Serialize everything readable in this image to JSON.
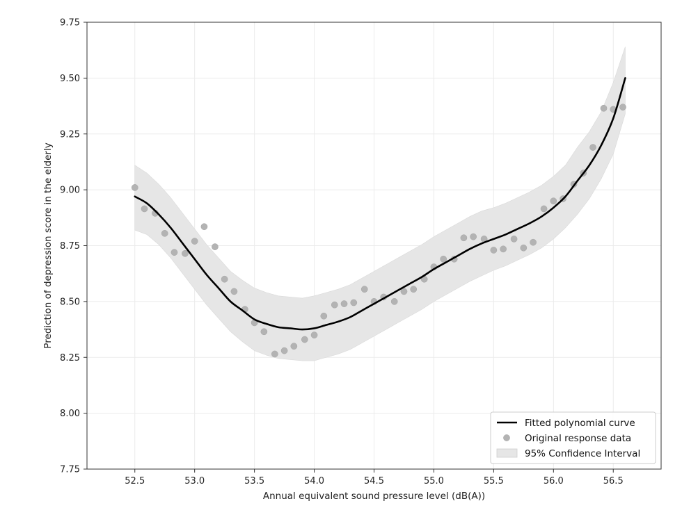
{
  "chart_data": {
    "type": "line",
    "title": "",
    "xlabel": "Annual equivalent sound pressure level (dB(A))",
    "ylabel": "Prediction of depression score in the elderly",
    "xlim": [
      52.1,
      56.9
    ],
    "ylim": [
      7.75,
      9.75
    ],
    "x_ticks": [
      52.5,
      53.0,
      53.5,
      54.0,
      54.5,
      55.0,
      55.5,
      56.0,
      56.5
    ],
    "x_tick_labels": [
      "52.5",
      "53.0",
      "53.5",
      "54.0",
      "54.5",
      "55.0",
      "55.5",
      "56.0",
      "56.5"
    ],
    "y_ticks": [
      7.75,
      8.0,
      8.25,
      8.5,
      8.75,
      9.0,
      9.25,
      9.5,
      9.75
    ],
    "y_tick_labels": [
      "7.75",
      "8.00",
      "8.25",
      "8.50",
      "8.75",
      "9.00",
      "9.25",
      "9.50",
      "9.75"
    ],
    "grid": true,
    "legend_position": "lower-right",
    "legend": [
      {
        "label": "Fitted polynomial curve",
        "kind": "line",
        "color": "#000000"
      },
      {
        "label": "Original response data",
        "kind": "marker",
        "color": "#b3b3b3"
      },
      {
        "label": "95% Confidence Interval",
        "kind": "patch",
        "color": "#e6e6e6"
      }
    ],
    "fitted_curve": {
      "name": "Fitted polynomial curve",
      "color": "#000000",
      "x": [
        52.5,
        52.6,
        52.7,
        52.8,
        52.9,
        53.0,
        53.1,
        53.2,
        53.3,
        53.4,
        53.5,
        53.6,
        53.7,
        53.8,
        53.9,
        54.0,
        54.1,
        54.2,
        54.3,
        54.4,
        54.5,
        54.6,
        54.7,
        54.8,
        54.9,
        55.0,
        55.1,
        55.2,
        55.3,
        55.4,
        55.5,
        55.6,
        55.7,
        55.8,
        55.9,
        56.0,
        56.1,
        56.2,
        56.3,
        56.4,
        56.5,
        56.6
      ],
      "y": [
        8.97,
        8.94,
        8.89,
        8.83,
        8.76,
        8.69,
        8.62,
        8.56,
        8.5,
        8.46,
        8.42,
        8.4,
        8.385,
        8.38,
        8.375,
        8.38,
        8.395,
        8.41,
        8.43,
        8.46,
        8.49,
        8.52,
        8.55,
        8.58,
        8.61,
        8.645,
        8.675,
        8.705,
        8.735,
        8.76,
        8.78,
        8.8,
        8.825,
        8.85,
        8.88,
        8.92,
        8.97,
        9.04,
        9.11,
        9.2,
        9.32,
        9.5
      ]
    },
    "confidence_interval": {
      "name": "95% Confidence Interval",
      "color": "#e6e6e6",
      "x": [
        52.5,
        52.6,
        52.7,
        52.8,
        52.9,
        53.0,
        53.1,
        53.2,
        53.3,
        53.4,
        53.5,
        53.6,
        53.7,
        53.8,
        53.9,
        54.0,
        54.1,
        54.2,
        54.3,
        54.4,
        54.5,
        54.6,
        54.7,
        54.8,
        54.9,
        55.0,
        55.1,
        55.2,
        55.3,
        55.4,
        55.5,
        55.6,
        55.7,
        55.8,
        55.9,
        56.0,
        56.1,
        56.2,
        56.3,
        56.4,
        56.5,
        56.6
      ],
      "lower": [
        8.82,
        8.8,
        8.755,
        8.695,
        8.625,
        8.555,
        8.485,
        8.425,
        8.365,
        8.32,
        8.28,
        8.26,
        8.245,
        8.24,
        8.235,
        8.235,
        8.25,
        8.265,
        8.285,
        8.315,
        8.345,
        8.375,
        8.405,
        8.435,
        8.465,
        8.5,
        8.53,
        8.56,
        8.59,
        8.615,
        8.64,
        8.66,
        8.685,
        8.71,
        8.74,
        8.78,
        8.83,
        8.89,
        8.96,
        9.05,
        9.16,
        9.34
      ],
      "upper": [
        9.11,
        9.075,
        9.025,
        8.965,
        8.895,
        8.825,
        8.755,
        8.695,
        8.635,
        8.595,
        8.56,
        8.54,
        8.525,
        8.52,
        8.515,
        8.525,
        8.54,
        8.555,
        8.575,
        8.605,
        8.635,
        8.665,
        8.695,
        8.725,
        8.755,
        8.79,
        8.82,
        8.85,
        8.88,
        8.905,
        8.92,
        8.94,
        8.965,
        8.99,
        9.02,
        9.06,
        9.11,
        9.19,
        9.26,
        9.35,
        9.48,
        9.64
      ]
    },
    "scatter": {
      "name": "Original response data",
      "color": "#b3b3b3",
      "points": [
        [
          52.5,
          9.01
        ],
        [
          52.58,
          8.915
        ],
        [
          52.67,
          8.895
        ],
        [
          52.75,
          8.805
        ],
        [
          52.83,
          8.72
        ],
        [
          52.92,
          8.715
        ],
        [
          53.0,
          8.77
        ],
        [
          53.08,
          8.835
        ],
        [
          53.17,
          8.745
        ],
        [
          53.25,
          8.6
        ],
        [
          53.33,
          8.545
        ],
        [
          53.42,
          8.465
        ],
        [
          53.5,
          8.405
        ],
        [
          53.58,
          8.365
        ],
        [
          53.67,
          8.265
        ],
        [
          53.75,
          8.28
        ],
        [
          53.83,
          8.3
        ],
        [
          53.92,
          8.33
        ],
        [
          54.0,
          8.35
        ],
        [
          54.08,
          8.435
        ],
        [
          54.17,
          8.485
        ],
        [
          54.25,
          8.49
        ],
        [
          54.33,
          8.495
        ],
        [
          54.42,
          8.555
        ],
        [
          54.5,
          8.5
        ],
        [
          54.58,
          8.52
        ],
        [
          54.67,
          8.5
        ],
        [
          54.75,
          8.545
        ],
        [
          54.83,
          8.555
        ],
        [
          54.92,
          8.6
        ],
        [
          55.0,
          8.655
        ],
        [
          55.08,
          8.69
        ],
        [
          55.17,
          8.69
        ],
        [
          55.25,
          8.785
        ],
        [
          55.33,
          8.79
        ],
        [
          55.42,
          8.78
        ],
        [
          55.5,
          8.73
        ],
        [
          55.58,
          8.735
        ],
        [
          55.67,
          8.78
        ],
        [
          55.75,
          8.74
        ],
        [
          55.83,
          8.765
        ],
        [
          55.92,
          8.915
        ],
        [
          56.0,
          8.95
        ],
        [
          56.08,
          8.96
        ],
        [
          56.17,
          9.025
        ],
        [
          56.25,
          9.075
        ],
        [
          56.33,
          9.19
        ],
        [
          56.42,
          9.365
        ],
        [
          56.5,
          9.36
        ],
        [
          56.58,
          9.37
        ]
      ]
    }
  }
}
